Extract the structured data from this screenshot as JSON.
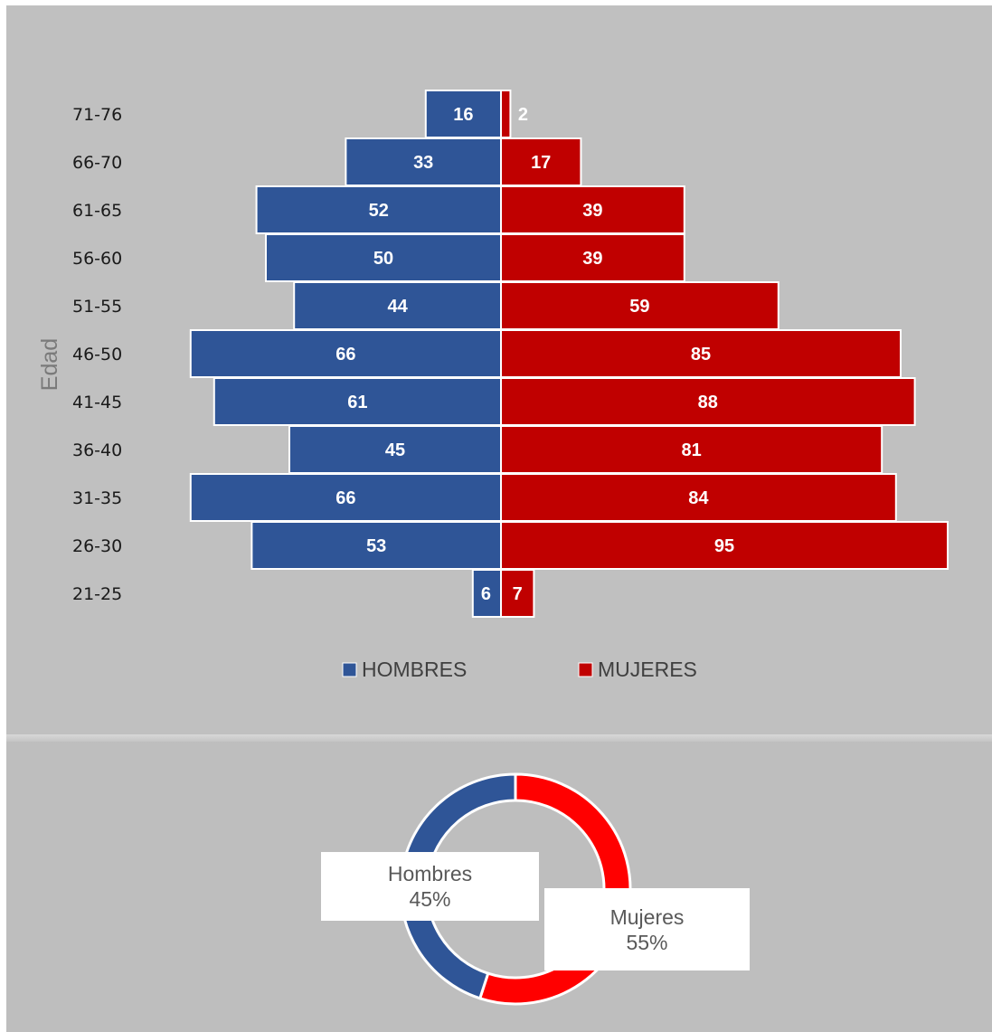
{
  "chart_data": [
    {
      "type": "bar",
      "orientation": "horizontal",
      "layout": "population-pyramid",
      "ylabel": "Edad",
      "categories": [
        "71-76",
        "66-70",
        "61-65",
        "56-60",
        "51-55",
        "46-50",
        "41-45",
        "36-40",
        "31-35",
        "26-30",
        "21-25"
      ],
      "series": [
        {
          "name": "HOMBRES",
          "values": [
            16,
            33,
            52,
            50,
            44,
            66,
            61,
            45,
            66,
            53,
            6
          ],
          "color": "#2f5597",
          "side": "left"
        },
        {
          "name": "MUJERES",
          "values": [
            2,
            17,
            39,
            39,
            59,
            85,
            88,
            81,
            84,
            95,
            7
          ],
          "color": "#c00000",
          "side": "right"
        }
      ],
      "legend": "bottom",
      "grid": false
    },
    {
      "type": "pie",
      "variant": "donut",
      "slices": [
        {
          "label": "Mujeres",
          "value": 55,
          "display": "55%",
          "color": "#ff0000"
        },
        {
          "label": "Hombres",
          "value": 45,
          "display": "45%",
          "color": "#2f5597"
        }
      ]
    }
  ]
}
